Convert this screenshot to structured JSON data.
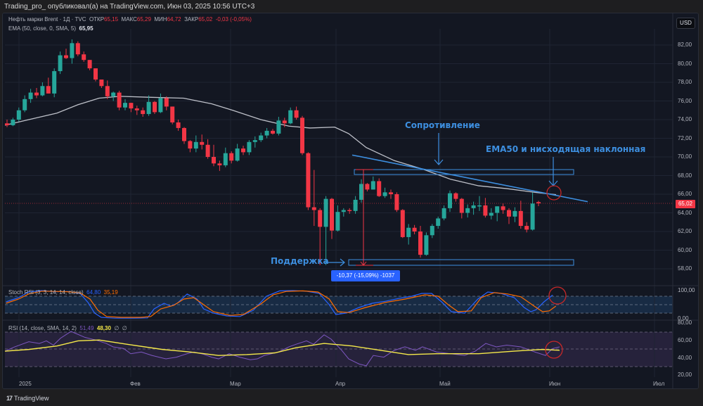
{
  "header": {
    "published_by": "Trading_pro_ опубликовал(а) на TradingView.com, Июн 03, 2025 10:56 UTC+3"
  },
  "legend": {
    "symbol": "Нефть марки Brent · 1Д · TVC",
    "open_label": "ОТКР",
    "open": "65,15",
    "high_label": "МАКС",
    "high": "65,29",
    "low_label": "МИН",
    "low": "64,72",
    "close_label": "ЗАКР",
    "close": "65,02",
    "change": "-0,03 (-0,05%)",
    "ema_label": "EMA (50, close, 0, SMA, 5)",
    "ema_value": "65,95"
  },
  "stoch_legend": {
    "label": "Stoch RSI (3, 3, 14, 14, close)",
    "k": "64,80",
    "d": "35,19"
  },
  "rsi_legend": {
    "label": "RSI (14, close, SMA, 14, 2)",
    "rsi": "51,49",
    "ma": "48,30",
    "extra1": "∅",
    "extra2": "∅"
  },
  "currency_button": "USD",
  "current_price_tag": "65,02",
  "price_axis": [
    "82,00",
    "80,00",
    "78,00",
    "76,00",
    "74,00",
    "72,00",
    "70,00",
    "68,00",
    "66,00",
    "64,00",
    "62,00",
    "60,00",
    "58,00"
  ],
  "stoch_axis": [
    "100,00",
    "0,00"
  ],
  "rsi_axis": [
    "80,00",
    "60,00",
    "40,00",
    "20,00"
  ],
  "time_axis": [
    "2025",
    "Фев",
    "Мар",
    "Апр",
    "Май",
    "Июн",
    "Июл"
  ],
  "annotations": {
    "resistance": "Сопротивление",
    "ema_trend": "EMA50 и нисходящая наклонная",
    "support": "Поддержка",
    "measure": "-10,37 (-15,09%) -1037"
  },
  "footer": {
    "brand": "TradingView"
  },
  "colors": {
    "up": "#26a69a",
    "down": "#f23645",
    "ema": "#d1d4dc",
    "annotation": "#3d8fe0",
    "stoch_k": "#2962ff",
    "stoch_d": "#ff6d00",
    "rsi": "#7e57c2",
    "rsi_ma": "#f5e94a",
    "circle": "#c62828"
  },
  "chart_data": [
    {
      "type": "candlestick",
      "title": "Нефть марки Brent · 1Д · TVC",
      "xlabel": "",
      "ylabel": "USD",
      "ylim": [
        57,
        84
      ],
      "x_ticks": [
        "2025",
        "Фев",
        "Мар",
        "Апр",
        "Май",
        "Июн",
        "Июл"
      ],
      "last": {
        "open": 65.15,
        "high": 65.29,
        "low": 64.72,
        "close": 65.02,
        "change": -0.03,
        "change_pct": -0.05
      },
      "ohlc_approx": [
        [
          73.6,
          74.0,
          73.2,
          73.4
        ],
        [
          73.4,
          74.2,
          73.3,
          74.0
        ],
        [
          74.0,
          75.3,
          73.8,
          75.0
        ],
        [
          75.0,
          76.6,
          74.8,
          76.2
        ],
        [
          76.2,
          77.3,
          75.8,
          76.9
        ],
        [
          76.9,
          77.4,
          76.3,
          76.6
        ],
        [
          76.6,
          78.0,
          76.5,
          77.6
        ],
        [
          77.6,
          78.5,
          76.8,
          76.8
        ],
        [
          76.8,
          79.5,
          76.4,
          79.2
        ],
        [
          79.2,
          81.3,
          78.9,
          80.9
        ],
        [
          80.9,
          81.6,
          80.5,
          80.6
        ],
        [
          80.6,
          82.6,
          80.0,
          82.2
        ],
        [
          82.2,
          82.4,
          80.8,
          81.0
        ],
        [
          81.0,
          81.3,
          80.2,
          80.4
        ],
        [
          80.4,
          80.4,
          79.3,
          79.5
        ],
        [
          79.5,
          79.5,
          78.1,
          78.3
        ],
        [
          78.3,
          78.3,
          77.4,
          77.6
        ],
        [
          77.6,
          78.2,
          76.2,
          76.5
        ],
        [
          76.5,
          77.0,
          76.0,
          76.9
        ],
        [
          76.9,
          77.1,
          75.0,
          75.3
        ],
        [
          75.3,
          76.2,
          75.0,
          75.8
        ],
        [
          75.8,
          75.8,
          74.8,
          75.2
        ],
        [
          75.2,
          75.5,
          74.5,
          75.0
        ],
        [
          75.0,
          75.3,
          74.3,
          74.6
        ],
        [
          74.6,
          76.6,
          74.4,
          75.9
        ],
        [
          75.9,
          76.0,
          74.6,
          74.8
        ],
        [
          74.8,
          76.8,
          74.7,
          76.3
        ],
        [
          76.3,
          76.5,
          75.0,
          75.4
        ],
        [
          75.4,
          75.4,
          73.5,
          73.7
        ],
        [
          73.7,
          74.0,
          72.8,
          73.1
        ],
        [
          73.1,
          73.2,
          71.4,
          71.7
        ],
        [
          71.7,
          71.8,
          70.5,
          70.9
        ],
        [
          70.9,
          72.3,
          70.5,
          71.6
        ],
        [
          71.6,
          72.4,
          70.8,
          71.3
        ],
        [
          71.3,
          71.9,
          69.8,
          70.0
        ],
        [
          70.0,
          71.3,
          69.0,
          69.3
        ],
        [
          69.3,
          69.6,
          68.5,
          69.1
        ],
        [
          69.1,
          71.0,
          68.9,
          70.4
        ],
        [
          70.4,
          70.6,
          69.3,
          69.6
        ],
        [
          69.6,
          71.4,
          69.5,
          70.9
        ],
        [
          70.9,
          71.2,
          70.2,
          70.5
        ],
        [
          70.5,
          71.8,
          70.2,
          71.6
        ],
        [
          71.6,
          72.2,
          71.0,
          71.8
        ],
        [
          71.8,
          72.6,
          71.6,
          72.3
        ],
        [
          72.3,
          73.1,
          72.0,
          72.8
        ],
        [
          72.8,
          73.0,
          72.4,
          72.5
        ],
        [
          72.5,
          74.3,
          72.3,
          73.9
        ],
        [
          73.9,
          74.2,
          73.2,
          73.6
        ],
        [
          73.6,
          75.3,
          73.5,
          75.0
        ],
        [
          75.0,
          75.4,
          74.0,
          74.2
        ],
        [
          74.2,
          74.4,
          70.2,
          70.4
        ],
        [
          70.4,
          70.5,
          64.3,
          64.6
        ],
        [
          64.6,
          68.6,
          62.6,
          64.3
        ],
        [
          64.3,
          64.5,
          58.4,
          62.5
        ],
        [
          62.5,
          65.8,
          58.4,
          65.5
        ],
        [
          65.5,
          65.6,
          61.2,
          62.1
        ],
        [
          62.1,
          64.8,
          62.0,
          64.1
        ],
        [
          64.1,
          64.5,
          63.6,
          64.3
        ],
        [
          64.3,
          64.5,
          63.9,
          64.2
        ],
        [
          64.2,
          65.8,
          63.9,
          65.4
        ],
        [
          65.4,
          67.6,
          65.1,
          67.1
        ],
        [
          67.1,
          67.2,
          66.3,
          66.5
        ],
        [
          66.5,
          67.9,
          66.5,
          67.4
        ],
        [
          67.4,
          67.7,
          65.7,
          65.8
        ],
        [
          65.8,
          66.7,
          65.6,
          66.2
        ],
        [
          66.2,
          66.5,
          65.5,
          66.0
        ],
        [
          66.0,
          66.2,
          64.1,
          64.3
        ],
        [
          64.3,
          64.4,
          61.3,
          61.4
        ],
        [
          61.4,
          62.8,
          60.6,
          62.4
        ],
        [
          62.4,
          62.7,
          61.7,
          62.0
        ],
        [
          62.0,
          62.6,
          59.2,
          59.5
        ],
        [
          59.5,
          61.9,
          59.4,
          61.6
        ],
        [
          61.6,
          62.8,
          61.3,
          62.6
        ],
        [
          62.6,
          63.6,
          62.3,
          63.4
        ],
        [
          63.4,
          64.8,
          63.2,
          64.5
        ],
        [
          64.5,
          66.4,
          64.1,
          66.1
        ],
        [
          66.1,
          66.2,
          65.2,
          65.5
        ],
        [
          65.5,
          65.6,
          63.4,
          64.0
        ],
        [
          64.0,
          64.9,
          63.5,
          64.5
        ],
        [
          64.5,
          65.2,
          63.8,
          64.8
        ],
        [
          64.8,
          65.8,
          64.2,
          64.8
        ],
        [
          64.8,
          65.6,
          63.5,
          63.7
        ],
        [
          63.7,
          64.5,
          63.3,
          64.0
        ],
        [
          64.0,
          64.7,
          63.1,
          64.7
        ],
        [
          64.7,
          65.0,
          63.9,
          64.3
        ],
        [
          64.3,
          64.5,
          62.8,
          63.6
        ],
        [
          63.6,
          64.6,
          63.0,
          64.2
        ],
        [
          64.2,
          65.3,
          62.3,
          62.6
        ],
        [
          62.6,
          63.0,
          61.9,
          62.2
        ],
        [
          62.2,
          66.2,
          62.1,
          65.0
        ],
        [
          65.15,
          65.29,
          64.72,
          65.02
        ]
      ],
      "ema50_path": "73.5→76.5 (Feb peak plateau)→75.5→73.5→72.5→73.1 (early Apr)→70→68→66.5→65.95"
    },
    {
      "type": "line",
      "title": "Stoch RSI (3, 3, 14, 14, close)",
      "ylim": [
        0,
        100
      ],
      "bands": [
        20,
        80
      ],
      "series": [
        {
          "name": "K",
          "last": 64.8
        },
        {
          "name": "D",
          "last": 35.19
        }
      ]
    },
    {
      "type": "line",
      "title": "RSI (14, close, SMA, 14, 2)",
      "ylim": [
        20,
        80
      ],
      "bands": [
        30,
        50,
        70
      ],
      "series": [
        {
          "name": "RSI",
          "last": 51.49
        },
        {
          "name": "RSI-MA",
          "last": 48.3
        }
      ]
    }
  ]
}
